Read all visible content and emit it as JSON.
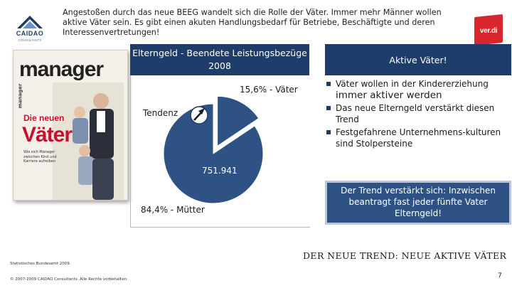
{
  "logos": {
    "caidao": {
      "name": "CAIDAO",
      "sub": "CONSULTANTS"
    },
    "verdi": {
      "text": "ver.di"
    }
  },
  "intro_text": "Angestoßen durch das neue BEEG wandelt sich die Rolle der Väter. Immer mehr Männer wollen aktive Väter sein. Es gibt einen akuten Handlungsbedarf für Betriebe, Beschäftigte und deren Interessenvertretungen!",
  "magazine": {
    "title": "manager",
    "vertical": "manager",
    "headline_small": "Die neuen",
    "headline_big": "Väter",
    "subline": "Wie sich Manager zwischen Kind und Karriere aufreiben"
  },
  "chart": {
    "header": "Elterngeld - Beendete Leistungsbezüge 2008",
    "vaeter_label": "15,6% - Väter",
    "muetter_label": "84,4% - Mütter",
    "total_label": "751.941",
    "tendenz_label": "Tendenz",
    "colors": {
      "muetter": "#2f5285",
      "vaeter": "#2f5285",
      "pie_edge": "#ffffff"
    }
  },
  "chart_data": {
    "type": "pie",
    "categories": [
      "Väter",
      "Mütter"
    ],
    "values": [
      15.6,
      84.4
    ],
    "total": 751941,
    "title": "Elterngeld - Beendete Leistungsbezüge 2008"
  },
  "right_panel": {
    "header": "Aktive Väter!",
    "bullets": [
      {
        "text": "Väter wollen in der Kindererziehung ",
        "emph": "immer aktiver werden"
      },
      {
        "text": "Das neue Elterngeld verstärkt diesen Trend",
        "emph": ""
      },
      {
        "text": "Festgefahrene Unternehmens-kulturen sind Stolpersteine",
        "emph": ""
      }
    ],
    "callout": "Der Trend  verstärkt sich: Inzwischen beantragt fast jeder fünfte Vater Elterngeld!"
  },
  "footer": {
    "source": "Statistisches Bundesamt 2009.",
    "copyright": "© 2007-2009 CAIDAO Consultants. Alle Rechte vorbehalten.",
    "trend_title": "DER NEUE TREND: NEUE AKTIVE VÄTER",
    "page_number": "7"
  }
}
